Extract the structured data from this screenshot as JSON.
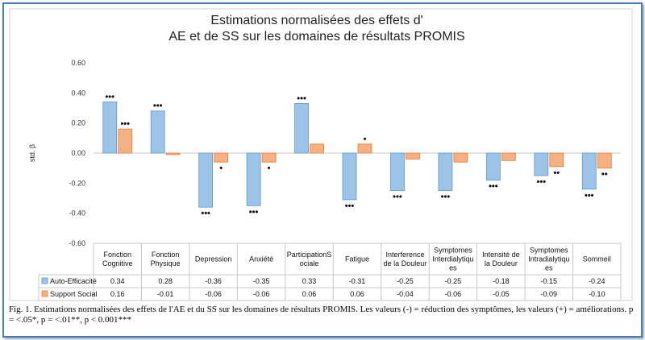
{
  "chart_data": {
    "type": "bar",
    "title_lines": [
      "Estimations normalisées des effets d'",
      "AE et de SS sur les domaines de résultats PROMIS"
    ],
    "ylabel": "std. β",
    "ylim": [
      -0.6,
      0.6
    ],
    "yticks": [
      "0.60",
      "0.40",
      "0.20",
      "0.00",
      "-0.20",
      "-0.40",
      "-0.60"
    ],
    "grid": false,
    "legend": "table-left",
    "categories": [
      [
        "Fonction",
        "Cognitive"
      ],
      [
        "Fonction",
        "Physique"
      ],
      [
        "Depression"
      ],
      [
        "Anxiété"
      ],
      [
        "ParticipationS",
        "ociale"
      ],
      [
        "Fatigue"
      ],
      [
        "Interference",
        "de la Douleur"
      ],
      [
        "Symptomes",
        "Interdialytiqu",
        "es"
      ],
      [
        "Intensité de",
        "la Douleur"
      ],
      [
        "Symptomes",
        "Intradialytiqu",
        "es"
      ],
      [
        "Sommeil"
      ]
    ],
    "series": [
      {
        "name": "Auto-Efficacité",
        "color": "#9dc3e6",
        "stroke": "#5b9bd5",
        "values": [
          0.34,
          0.28,
          -0.36,
          -0.35,
          0.33,
          -0.31,
          -0.25,
          -0.25,
          -0.18,
          -0.15,
          -0.24
        ],
        "labels": [
          "0.34",
          "0.28",
          "-0.36",
          "-0.35",
          "0.33",
          "-0.31",
          "-0.25",
          "-0.25",
          "-0.18",
          "-0.15",
          "-0.24"
        ],
        "sig": [
          "•••",
          "•••",
          "•••",
          "•••",
          "•••",
          "•••",
          "•••",
          "•••",
          "•••",
          "•••",
          "•••"
        ]
      },
      {
        "name": "Support Social",
        "color": "#f4b183",
        "stroke": "#ed7d31",
        "values": [
          0.16,
          -0.01,
          -0.06,
          -0.06,
          0.06,
          0.06,
          -0.04,
          -0.06,
          -0.05,
          -0.09,
          -0.1
        ],
        "labels": [
          "0.16",
          "-0.01",
          "-0.06",
          "-0.06",
          "0.06",
          "0.06",
          "-0.04",
          "-0.06",
          "-0.05",
          "-0.09",
          "-0.10"
        ],
        "sig": [
          "•••",
          "",
          "•",
          "•",
          "",
          "•",
          "",
          "",
          "",
          "••",
          "••"
        ]
      }
    ]
  },
  "caption": "Fig. 1.  Estimations normalisées des effets de l'AE et du SS sur les domaines de résultats PROMIS. Les valeurs (-) = réduction des symptômes, les valeurs (+) = améliorations. p = <.05*, p = <.01**, p < 0.001***"
}
